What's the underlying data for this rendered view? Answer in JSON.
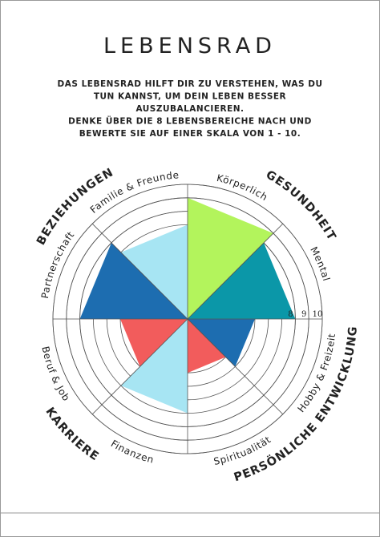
{
  "chart_data": {
    "type": "polar-wedge",
    "title": "LEBENSRAD",
    "intro_lines": [
      "DAS LEBENSRAD HILFT DIR ZU VERSTEHEN, WAS DU",
      "TUN KANNST, UM DEIN LEBEN BESSER",
      "AUSZUBALANCIEREN.",
      "DENKE ÜBER DIE 8 LEBENSBEREICHE NACH UND",
      "BEWERTE SIE AUF EINER SKALA VON 1 - 10."
    ],
    "categories": [
      "Körperlich",
      "Mental",
      "Hobby & Freizeit",
      "Spiritualität",
      "Finanzen",
      "Beruf & Job",
      "Partnerschaft",
      "Familie & Freunde"
    ],
    "values": [
      9,
      8,
      5,
      4,
      7,
      5,
      8,
      7
    ],
    "colors": [
      "#b3f45c",
      "#0b97a8",
      "#1d6db0",
      "#f25c5c",
      "#a7e5f3",
      "#f25c5c",
      "#1d6db0",
      "#a7e5f3"
    ],
    "groups": [
      "GESUNDHEIT",
      "PERSÖNLICHE ENTWICKLUNG",
      "KARRIERE",
      "BEZIEHUNGEN"
    ],
    "rlim": [
      0,
      10
    ],
    "rticks": [
      8,
      9,
      10
    ]
  }
}
